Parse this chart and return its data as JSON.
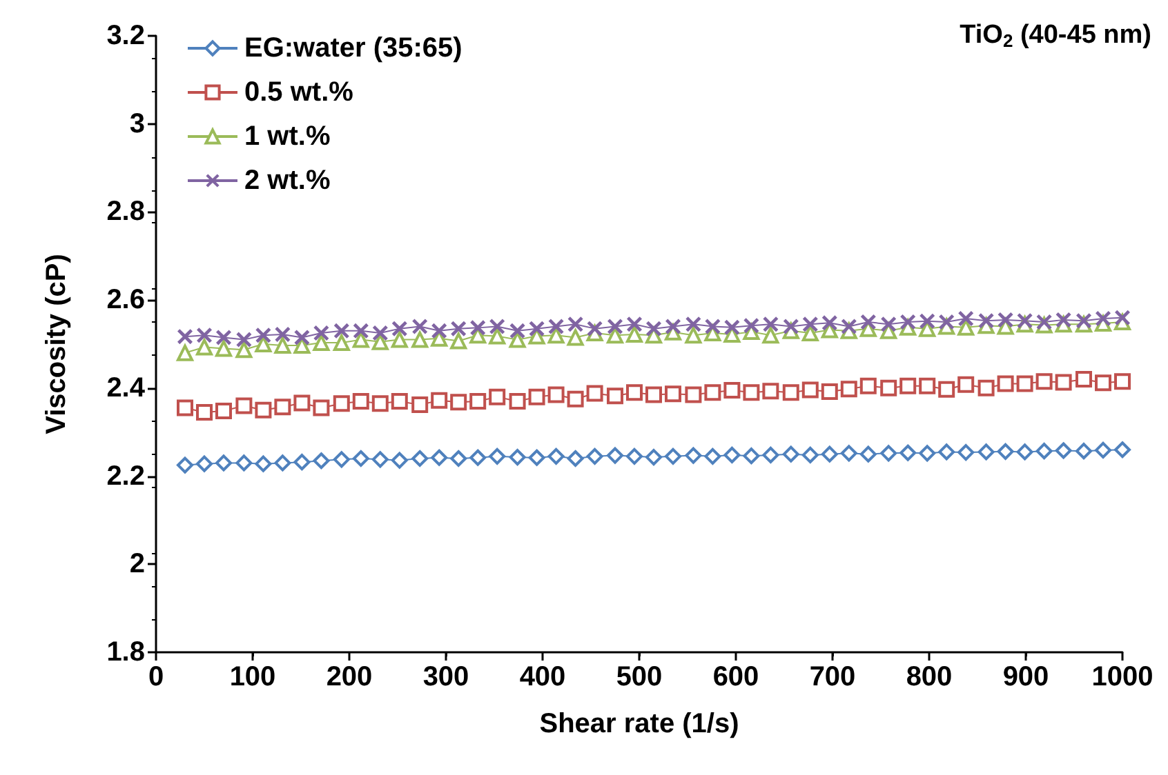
{
  "chart_data": {
    "type": "line",
    "xlabel": "Shear rate (1/s)",
    "ylabel": "Viscosity (cP)",
    "annotations": [
      "TiO$_{2}$ (40-45 nm)"
    ],
    "x": [
      30,
      50,
      70,
      91,
      111,
      131,
      151,
      171,
      192,
      212,
      232,
      252,
      273,
      293,
      313,
      333,
      353,
      374,
      394,
      414,
      434,
      454,
      475,
      495,
      515,
      535,
      556,
      576,
      596,
      616,
      636,
      657,
      677,
      697,
      717,
      737,
      758,
      778,
      798,
      818,
      838,
      859,
      879,
      899,
      919,
      939,
      960,
      980,
      1000
    ],
    "xlim": [
      0,
      1000
    ],
    "xticks": [
      0,
      100,
      200,
      300,
      400,
      500,
      600,
      700,
      800,
      900,
      1000
    ],
    "ylim": [
      1.8,
      3.2
    ],
    "yticks": [
      1.8,
      2,
      2.2,
      2.4,
      2.6,
      2.8,
      3,
      3.2
    ],
    "legend": "top left",
    "grid": false,
    "line_style": "solid",
    "series": [
      {
        "name": "EG:water (35:65)",
        "color": "#4f81bd",
        "marker": "diamond",
        "values": [
          2.225,
          2.228,
          2.23,
          2.23,
          2.228,
          2.23,
          2.232,
          2.235,
          2.238,
          2.24,
          2.238,
          2.236,
          2.24,
          2.242,
          2.24,
          2.242,
          2.245,
          2.243,
          2.242,
          2.245,
          2.24,
          2.245,
          2.247,
          2.245,
          2.243,
          2.245,
          2.247,
          2.245,
          2.248,
          2.246,
          2.248,
          2.25,
          2.248,
          2.25,
          2.252,
          2.25,
          2.252,
          2.253,
          2.252,
          2.255,
          2.254,
          2.255,
          2.256,
          2.255,
          2.257,
          2.258,
          2.257,
          2.259,
          2.26
        ]
      },
      {
        "name": "0.5 wt.%",
        "color": "#c0504d",
        "marker": "square",
        "values": [
          2.355,
          2.345,
          2.348,
          2.36,
          2.35,
          2.357,
          2.366,
          2.355,
          2.365,
          2.37,
          2.365,
          2.37,
          2.362,
          2.372,
          2.368,
          2.37,
          2.38,
          2.37,
          2.38,
          2.385,
          2.375,
          2.388,
          2.382,
          2.39,
          2.385,
          2.387,
          2.385,
          2.39,
          2.395,
          2.39,
          2.393,
          2.39,
          2.396,
          2.392,
          2.398,
          2.405,
          2.4,
          2.405,
          2.405,
          2.397,
          2.408,
          2.4,
          2.41,
          2.41,
          2.415,
          2.413,
          2.42,
          2.412,
          2.415
        ]
      },
      {
        "name": "1 wt.%",
        "color": "#9bbb59",
        "marker": "triangle",
        "values": [
          2.48,
          2.493,
          2.49,
          2.487,
          2.5,
          2.497,
          2.497,
          2.503,
          2.503,
          2.51,
          2.505,
          2.51,
          2.51,
          2.513,
          2.507,
          2.52,
          2.518,
          2.51,
          2.518,
          2.52,
          2.515,
          2.525,
          2.52,
          2.522,
          2.52,
          2.527,
          2.52,
          2.525,
          2.522,
          2.528,
          2.52,
          2.53,
          2.525,
          2.532,
          2.53,
          2.535,
          2.53,
          2.538,
          2.535,
          2.54,
          2.538,
          2.542,
          2.54,
          2.545,
          2.543,
          2.545,
          2.545,
          2.547,
          2.55
        ]
      },
      {
        "name": "2 wt.%",
        "color": "#8064a2",
        "marker": "cross",
        "values": [
          2.517,
          2.52,
          2.515,
          2.51,
          2.52,
          2.522,
          2.515,
          2.525,
          2.53,
          2.53,
          2.525,
          2.535,
          2.54,
          2.53,
          2.535,
          2.537,
          2.54,
          2.53,
          2.535,
          2.54,
          2.545,
          2.535,
          2.54,
          2.545,
          2.535,
          2.54,
          2.545,
          2.54,
          2.538,
          2.542,
          2.545,
          2.54,
          2.545,
          2.548,
          2.54,
          2.55,
          2.545,
          2.55,
          2.552,
          2.55,
          2.558,
          2.553,
          2.555,
          2.553,
          2.55,
          2.555,
          2.553,
          2.558,
          2.56
        ]
      }
    ]
  }
}
